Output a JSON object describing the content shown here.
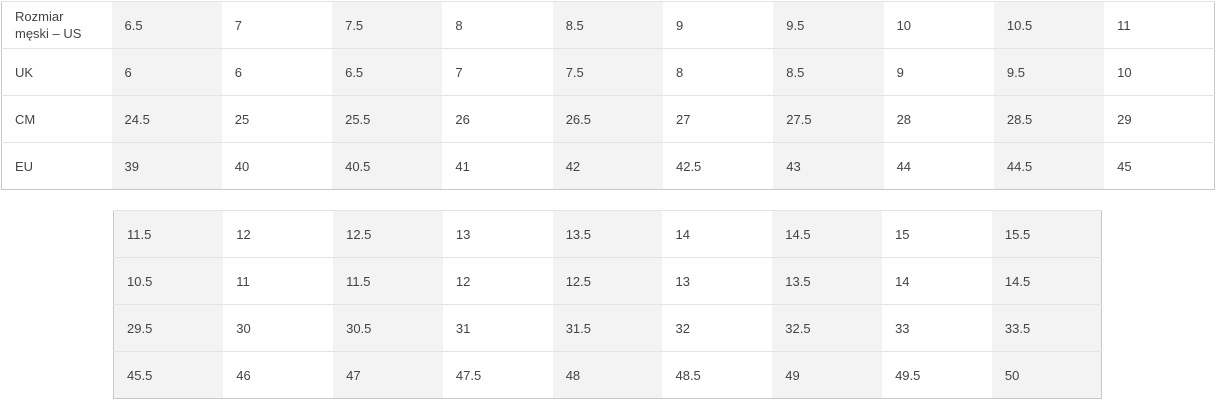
{
  "table1": {
    "rows": [
      {
        "label": "Rozmiar męski – US",
        "values": [
          "6.5",
          "7",
          "7.5",
          "8",
          "8.5",
          "9",
          "9.5",
          "10",
          "10.5",
          "11"
        ]
      },
      {
        "label": "UK",
        "values": [
          "6",
          "6",
          "6.5",
          "7",
          "7.5",
          "8",
          "8.5",
          "9",
          "9.5",
          "10"
        ]
      },
      {
        "label": "CM",
        "values": [
          "24.5",
          "25",
          "25.5",
          "26",
          "26.5",
          "27",
          "27.5",
          "28",
          "28.5",
          "29"
        ]
      },
      {
        "label": "EU",
        "values": [
          "39",
          "40",
          "40.5",
          "41",
          "42",
          "42.5",
          "43",
          "44",
          "44.5",
          "45"
        ]
      }
    ]
  },
  "table2": {
    "rows": [
      {
        "values": [
          "11.5",
          "12",
          "12.5",
          "13",
          "13.5",
          "14",
          "14.5",
          "15",
          "15.5"
        ]
      },
      {
        "values": [
          "10.5",
          "11",
          "11.5",
          "12",
          "12.5",
          "13",
          "13.5",
          "14",
          "14.5"
        ]
      },
      {
        "values": [
          "29.5",
          "30",
          "30.5",
          "31",
          "31.5",
          "32",
          "32.5",
          "33",
          "33.5"
        ]
      },
      {
        "values": [
          "45.5",
          "46",
          "47",
          "47.5",
          "48",
          "48.5",
          "49",
          "49.5",
          "50"
        ]
      }
    ]
  },
  "colors": {
    "shaded_column": "#f3f3f3",
    "text": "#444444",
    "border": "#c8c8c8"
  }
}
